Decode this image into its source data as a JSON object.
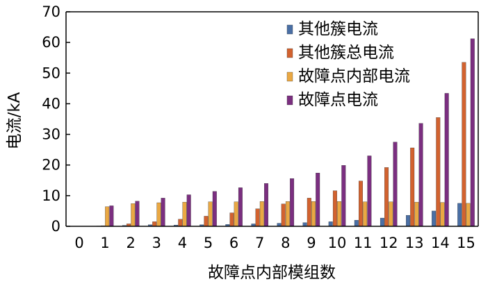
{
  "chart_data": {
    "type": "bar",
    "title": "",
    "xlabel": "故障点内部模组数",
    "ylabel": "电流/kA",
    "ylim": [
      0,
      70
    ],
    "yticks": [
      0,
      10,
      20,
      30,
      40,
      50,
      60,
      70
    ],
    "categories": [
      "0",
      "1",
      "2",
      "3",
      "4",
      "5",
      "6",
      "7",
      "8",
      "9",
      "10",
      "11",
      "12",
      "13",
      "14",
      "15"
    ],
    "legend_position": "top-right",
    "series": [
      {
        "name": "其他簇电流",
        "color": "#4a6fa5",
        "values": [
          0,
          0.1,
          0.3,
          0.5,
          0.4,
          0.5,
          0.6,
          0.8,
          1.0,
          1.2,
          1.5,
          2.0,
          2.7,
          3.6,
          5.0,
          7.5
        ]
      },
      {
        "name": "其他簇总电流",
        "color": "#d2622f",
        "values": [
          0,
          0.2,
          0.8,
          1.5,
          2.3,
          3.3,
          4.4,
          5.7,
          7.3,
          9.2,
          11.6,
          14.8,
          19.2,
          25.6,
          35.5,
          53.5
        ]
      },
      {
        "name": "故障点内部电流",
        "color": "#eaa843",
        "values": [
          0,
          6.4,
          7.4,
          7.7,
          7.9,
          8.0,
          8.0,
          8.1,
          8.1,
          8.1,
          8.1,
          8.0,
          8.0,
          7.9,
          7.8,
          7.5
        ]
      },
      {
        "name": "故障点电流",
        "color": "#7b2f80",
        "values": [
          0,
          6.7,
          8.2,
          9.2,
          10.3,
          11.4,
          12.6,
          14.0,
          15.6,
          17.4,
          19.9,
          23.0,
          27.5,
          33.6,
          43.4,
          61.2
        ]
      }
    ],
    "grid": false
  }
}
